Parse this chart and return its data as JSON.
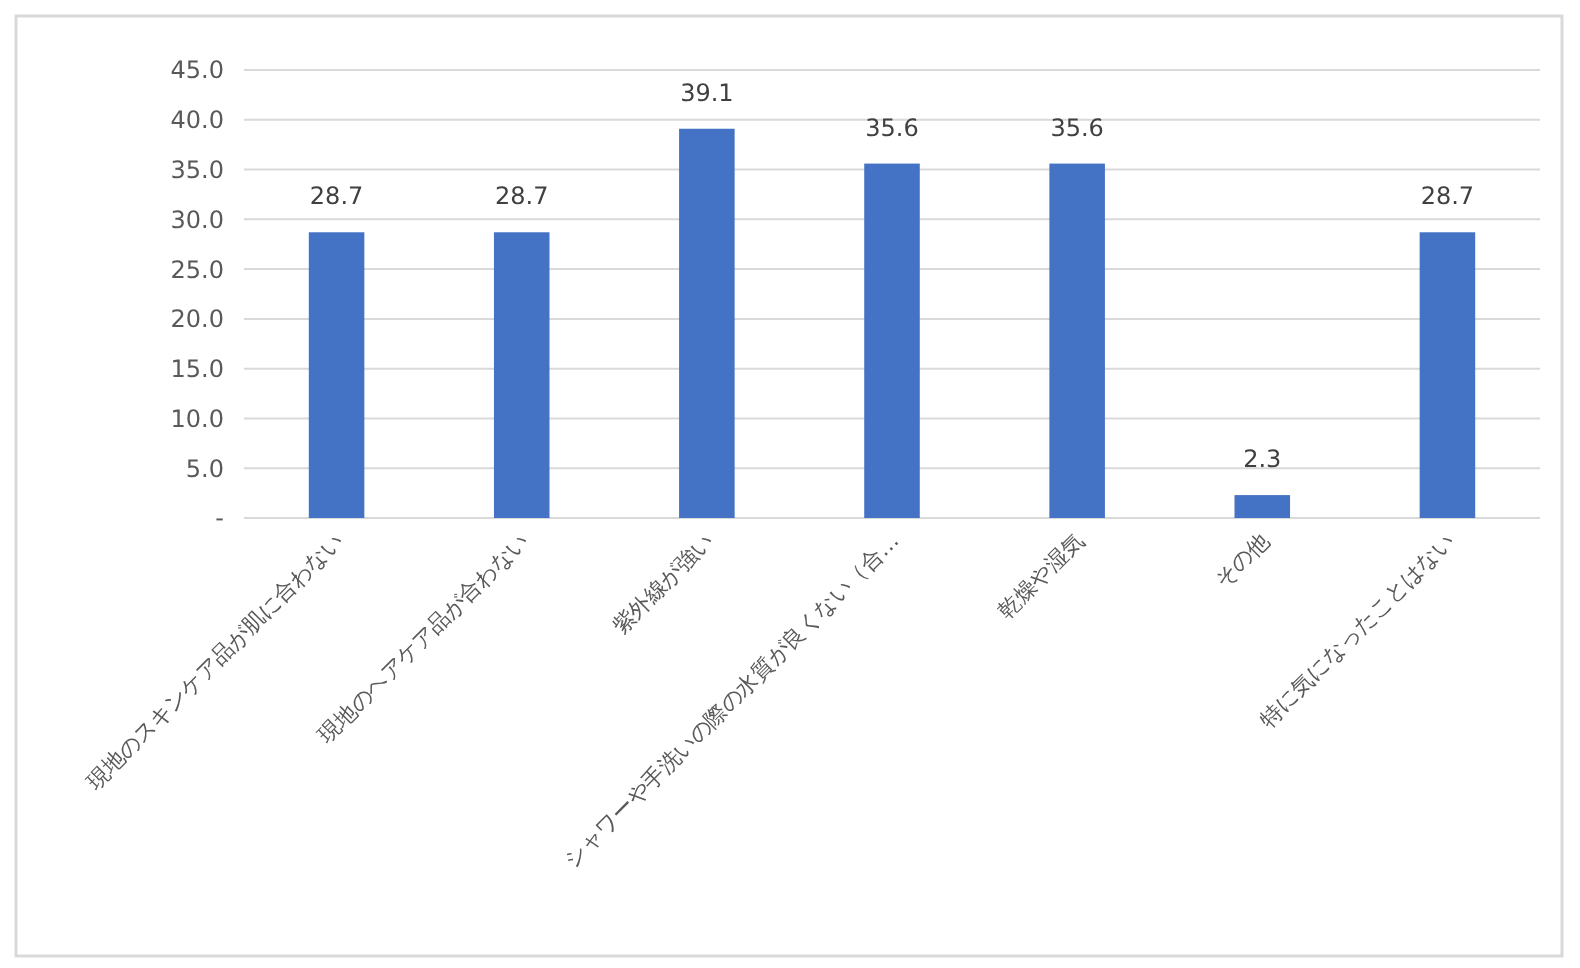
{
  "chart_data": {
    "type": "bar",
    "categories": [
      "現地のスキンケア品が肌に合わない",
      "現地のヘアケア品が合わない",
      "紫外線が強い",
      "シャワーや手洗いの際の水質が良くない（合…",
      "乾燥や湿気",
      "その他",
      "特に気になったことはない"
    ],
    "values": [
      28.7,
      28.7,
      39.1,
      35.6,
      35.6,
      2.3,
      28.7
    ],
    "color": "#4472c4",
    "ylim": [
      0,
      45
    ],
    "yticks": [
      {
        "value": 0,
        "label": "-"
      },
      {
        "value": 5,
        "label": "5.0"
      },
      {
        "value": 10,
        "label": "10.0"
      },
      {
        "value": 15,
        "label": "15.0"
      },
      {
        "value": 20,
        "label": "20.0"
      },
      {
        "value": 25,
        "label": "25.0"
      },
      {
        "value": 30,
        "label": "30.0"
      },
      {
        "value": 35,
        "label": "35.0"
      },
      {
        "value": 40,
        "label": "40.0"
      },
      {
        "value": 45,
        "label": "45.0"
      }
    ],
    "grid": "y",
    "data_labels": true
  }
}
